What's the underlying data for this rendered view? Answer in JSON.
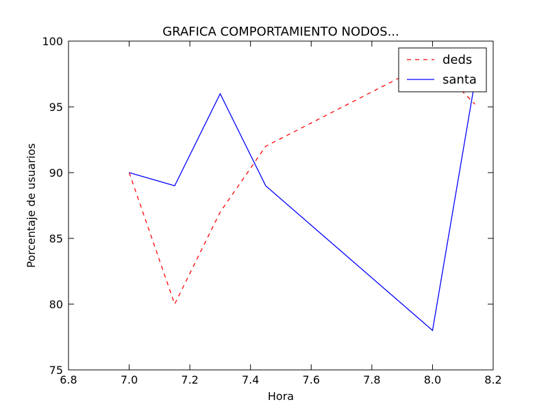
{
  "chart_data": {
    "type": "line",
    "title": "GRAFICA COMPORTAMIENTO NODOS...",
    "xlabel": "Hora",
    "ylabel": "Porcentaje de usuarios",
    "xlim": [
      6.8,
      8.2
    ],
    "ylim": [
      75,
      100
    ],
    "xticks": [
      "6.8",
      "7.0",
      "7.2",
      "7.4",
      "7.6",
      "7.8",
      "8.0",
      "8.2"
    ],
    "yticks": [
      "75",
      "80",
      "85",
      "90",
      "95",
      "100"
    ],
    "grid": false,
    "legend_position": "top-right",
    "series": [
      {
        "name": "deds",
        "color": "#ff0000",
        "style": "dashed",
        "x": [
          7.0,
          7.15,
          7.3,
          7.45,
          8.0,
          8.14
        ],
        "y": [
          90,
          80,
          87,
          92,
          98.5,
          95.2
        ]
      },
      {
        "name": "santa",
        "color": "#0000ff",
        "style": "solid",
        "x": [
          7.0,
          7.15,
          7.3,
          7.45,
          8.0,
          8.14
        ],
        "y": [
          90,
          89,
          96,
          89,
          78,
          97
        ]
      }
    ]
  }
}
